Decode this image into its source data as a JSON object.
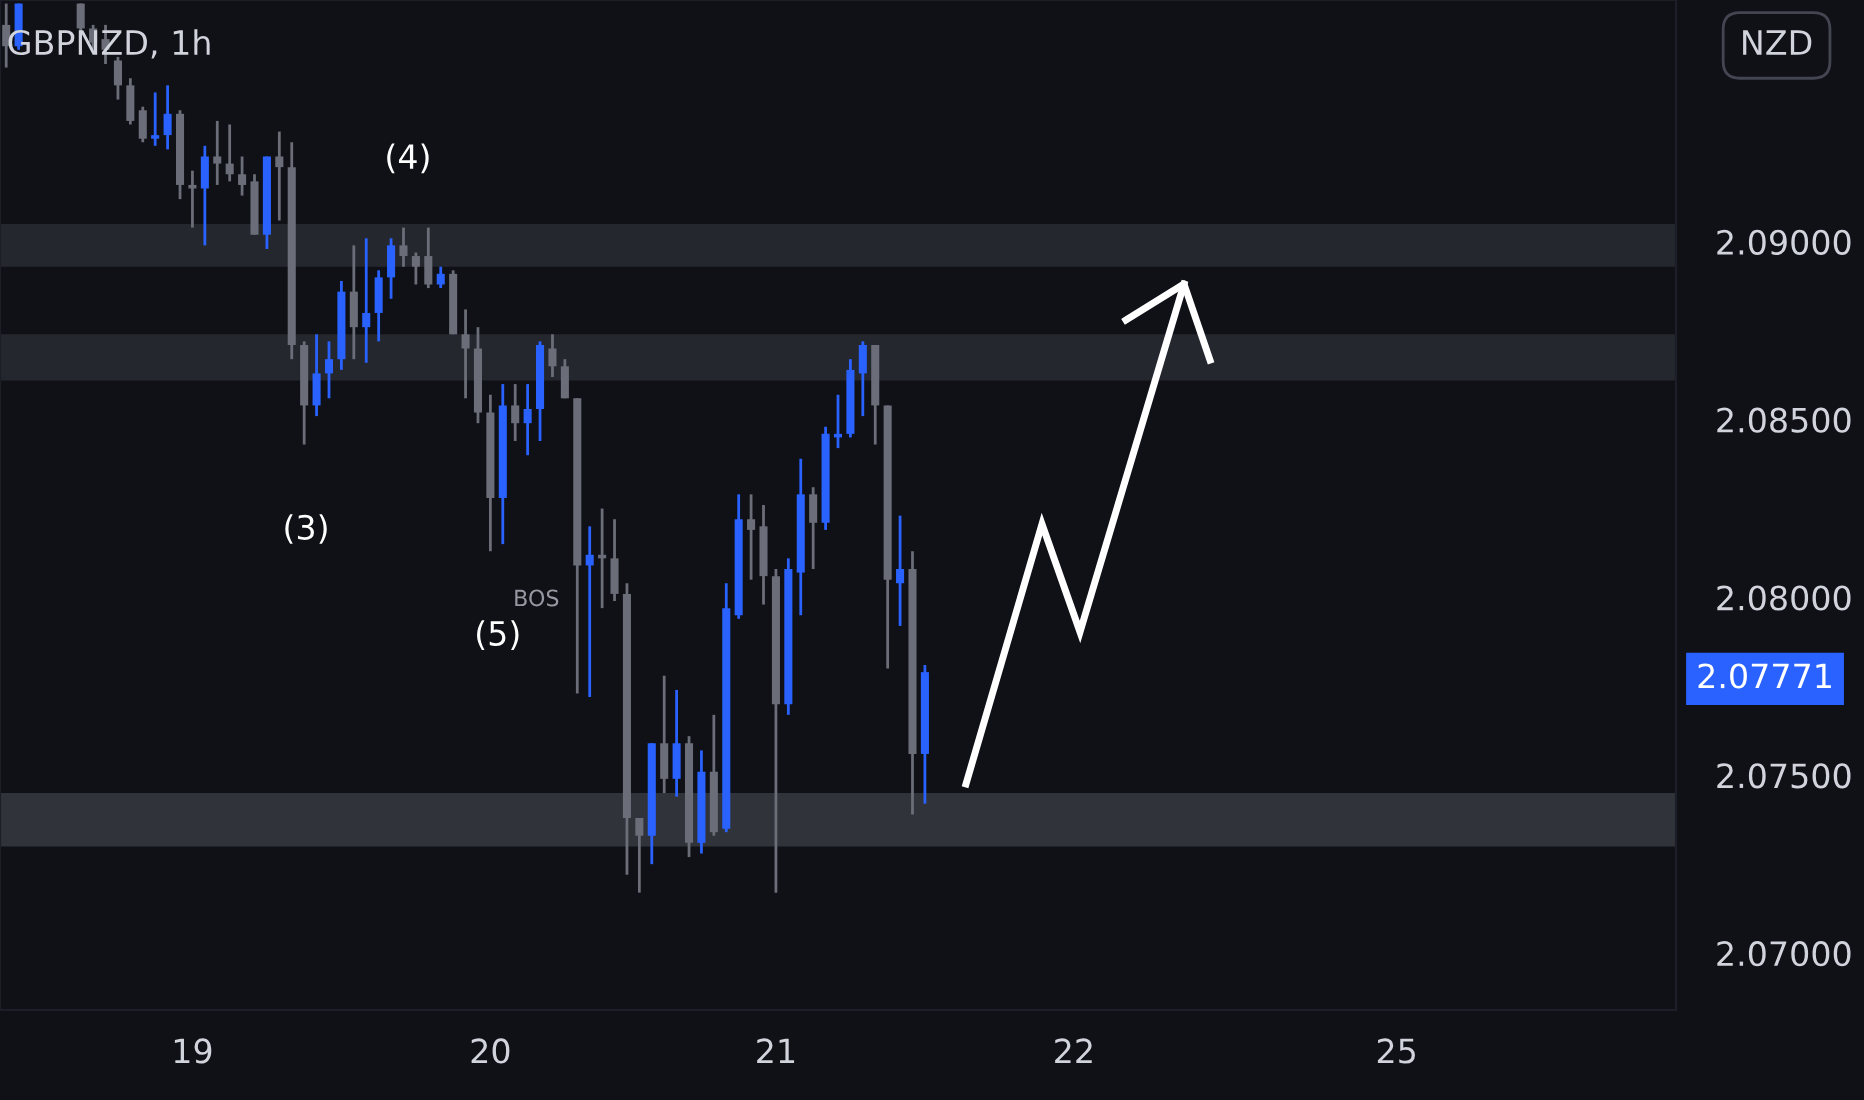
{
  "chart_data": {
    "type": "candlestick",
    "title": "GBPNZD, 1h",
    "categories": [
      null,
      null,
      null,
      null,
      null,
      null,
      null,
      null,
      null,
      null,
      null,
      null,
      null,
      null,
      null,
      "19",
      null,
      null,
      null,
      null,
      null,
      null,
      null,
      null,
      null,
      null,
      null,
      null,
      null,
      null,
      null,
      null,
      null,
      null,
      null,
      null,
      null,
      null,
      null,
      "20",
      null,
      null,
      null,
      null,
      null,
      null,
      null,
      null,
      null,
      null,
      null,
      null,
      null,
      null,
      null,
      null,
      null,
      null,
      null,
      null,
      null,
      null,
      "21",
      null,
      null,
      null,
      null,
      null,
      null,
      null,
      null,
      null,
      null,
      null,
      null,
      null,
      null,
      null,
      null,
      null,
      null,
      null,
      null,
      null,
      null,
      null,
      "22",
      null,
      null,
      null,
      null,
      null,
      null,
      null,
      null,
      null,
      null,
      null,
      null,
      null,
      null,
      null,
      null,
      null,
      null,
      null,
      null,
      null,
      null,
      null,
      null,
      null,
      "25",
      null,
      null,
      null,
      null,
      null,
      null,
      null,
      null,
      null,
      null,
      null,
      null,
      null,
      null,
      null,
      null,
      null,
      null,
      null,
      null,
      null,
      null
    ],
    "ohlc": [
      [
        2.0961,
        2.0967,
        2.0949,
        2.0955
      ],
      [
        2.0955,
        2.0967,
        2.0954,
        2.0967
      ],
      null,
      null,
      null,
      null,
      [
        2.0967,
        2.0967,
        2.0957,
        2.096
      ],
      [
        2.096,
        2.0961,
        2.0954,
        2.0956
      ],
      [
        2.0957,
        2.0961,
        2.095,
        2.0954
      ],
      [
        2.0951,
        2.0952,
        2.094,
        2.0944
      ],
      [
        2.0944,
        2.0946,
        2.0933,
        2.0934
      ],
      [
        2.0937,
        2.0938,
        2.0928,
        2.0929
      ],
      [
        2.0929,
        2.0942,
        2.0927,
        2.093
      ],
      [
        2.093,
        2.0944,
        2.0926,
        2.0936
      ],
      [
        2.0936,
        2.0937,
        2.0912,
        2.0916
      ],
      [
        2.0916,
        2.092,
        2.0904,
        2.0915
      ],
      [
        2.0915,
        2.0927,
        2.0899,
        2.0924
      ],
      [
        2.0924,
        2.0934,
        2.0916,
        2.0922
      ],
      [
        2.0922,
        2.0933,
        2.0917,
        2.0919
      ],
      [
        2.0919,
        2.0924,
        2.0913,
        2.0916
      ],
      [
        2.0917,
        2.0919,
        2.0902,
        2.0902
      ],
      [
        2.0902,
        2.0924,
        2.0898,
        2.0924
      ],
      [
        2.0924,
        2.0931,
        2.0906,
        2.0921
      ],
      [
        2.0921,
        2.0928,
        2.0867,
        2.0871
      ],
      [
        2.0871,
        2.0872,
        2.0843,
        2.0854
      ],
      [
        2.0854,
        2.0874,
        2.0851,
        2.0863
      ],
      [
        2.0863,
        2.0872,
        2.0856,
        2.0867
      ],
      [
        2.0867,
        2.0889,
        2.0864,
        2.0886
      ],
      [
        2.0886,
        2.0899,
        2.0867,
        2.0876
      ],
      [
        2.0876,
        2.0901,
        2.0866,
        2.088
      ],
      [
        2.088,
        2.0892,
        2.0872,
        2.089
      ],
      [
        2.089,
        2.0901,
        2.0884,
        2.0899
      ],
      [
        2.0899,
        2.0904,
        2.0893,
        2.0896
      ],
      [
        2.0896,
        2.0897,
        2.0888,
        2.0893
      ],
      [
        2.0896,
        2.0904,
        2.0887,
        2.0888
      ],
      [
        2.0888,
        2.0893,
        2.0887,
        2.0891
      ],
      [
        2.0891,
        2.0892,
        2.0874,
        2.0874
      ],
      [
        2.0874,
        2.0881,
        2.0856,
        2.087
      ],
      [
        2.087,
        2.0876,
        2.0849,
        2.0852
      ],
      [
        2.0852,
        2.0857,
        2.0813,
        2.0828
      ],
      [
        2.0828,
        2.086,
        2.0815,
        2.0854
      ],
      [
        2.0854,
        2.086,
        2.0844,
        2.0849
      ],
      [
        2.0849,
        2.086,
        2.084,
        2.0853
      ],
      [
        2.0853,
        2.0872,
        2.0844,
        2.0871
      ],
      [
        2.087,
        2.0874,
        2.0862,
        2.0865
      ],
      [
        2.0865,
        2.0867,
        2.0856,
        2.0856
      ],
      [
        2.0856,
        2.0856,
        2.0773,
        2.0809
      ],
      [
        2.0809,
        2.082,
        2.0772,
        2.0812
      ],
      [
        2.0812,
        2.0825,
        2.0797,
        2.0811
      ],
      [
        2.0811,
        2.0822,
        2.0799,
        2.0801
      ],
      [
        2.0801,
        2.0804,
        2.0722,
        2.0738
      ],
      [
        2.0738,
        2.0738,
        2.0717,
        2.0733
      ],
      [
        2.0733,
        2.0759,
        2.0725,
        2.0759
      ],
      [
        2.0759,
        2.0778,
        2.0745,
        2.0749
      ],
      [
        2.0749,
        2.0774,
        2.0744,
        2.0759
      ],
      [
        2.0759,
        2.0761,
        2.0727,
        2.0731
      ],
      [
        2.0731,
        2.0757,
        2.0728,
        2.0751
      ],
      [
        2.0751,
        2.0767,
        2.0733,
        2.0734
      ],
      [
        2.0735,
        2.0804,
        2.0734,
        2.0797
      ],
      [
        2.0795,
        2.0829,
        2.0794,
        2.0822
      ],
      [
        2.0822,
        2.0829,
        2.0805,
        2.0819
      ],
      [
        2.082,
        2.0826,
        2.0798,
        2.0806
      ],
      [
        2.0806,
        2.0808,
        2.0717,
        2.077
      ],
      [
        2.077,
        2.0811,
        2.0767,
        2.0808
      ],
      [
        2.0807,
        2.0839,
        2.0795,
        2.0829
      ],
      [
        2.0829,
        2.0831,
        2.0808,
        2.0821
      ],
      [
        2.0821,
        2.0848,
        2.0819,
        2.0846
      ],
      [
        2.0845,
        2.0857,
        2.0842,
        2.0846
      ],
      [
        2.0846,
        2.0867,
        2.0845,
        2.0864
      ],
      [
        2.0863,
        2.0872,
        2.0851,
        2.0871
      ],
      [
        2.0871,
        2.0871,
        2.0843,
        2.0854
      ],
      [
        2.0854,
        2.0854,
        2.078,
        2.0805
      ],
      [
        2.0804,
        2.0823,
        2.0792,
        2.0808
      ],
      [
        2.0808,
        2.0813,
        2.0739,
        2.0756
      ],
      [
        2.0756,
        2.0781,
        2.0742,
        2.0779
      ],
      null,
      null,
      null,
      null,
      null,
      null,
      null,
      null,
      null,
      null,
      null,
      null,
      null,
      null,
      null,
      null,
      null,
      null,
      null,
      null,
      null,
      null,
      null,
      null,
      null,
      null,
      null,
      null,
      null,
      null,
      null,
      null,
      null,
      null,
      null,
      null,
      null,
      null,
      null,
      null,
      null,
      null,
      null,
      null,
      null,
      null,
      null,
      null,
      null,
      null,
      null,
      null,
      null,
      null,
      null,
      null,
      null,
      null,
      null,
      null
    ],
    "colors": [
      "#6b6e78",
      "#2962ff",
      null,
      null,
      null,
      null,
      "#6b6e78",
      "#6b6e78",
      "#6b6e78",
      "#6b6e78",
      "#6b6e78",
      "#6b6e78",
      "#2962ff",
      "#2962ff",
      "#6b6e78",
      "#6b6e78",
      "#2962ff",
      "#6b6e78",
      "#6b6e78",
      "#6b6e78",
      "#6b6e78",
      "#2962ff",
      "#6b6e78",
      "#6b6e78",
      "#6b6e78",
      "#2962ff",
      "#2962ff",
      "#2962ff",
      "#6b6e78",
      "#2962ff",
      "#2962ff",
      "#2962ff",
      "#6b6e78",
      "#6b6e78",
      "#6b6e78",
      "#2962ff",
      "#6b6e78",
      "#6b6e78",
      "#6b6e78",
      "#6b6e78",
      "#2962ff",
      "#6b6e78",
      "#2962ff",
      "#2962ff",
      "#6b6e78",
      "#6b6e78",
      "#6b6e78",
      "#2962ff",
      "#6b6e78",
      "#6b6e78",
      "#6b6e78",
      "#6b6e78",
      "#2962ff",
      "#6b6e78",
      "#2962ff",
      "#6b6e78",
      "#2962ff",
      "#6b6e78",
      "#2962ff",
      "#2962ff",
      "#6b6e78",
      "#6b6e78",
      "#6b6e78",
      "#2962ff",
      "#2962ff",
      "#6b6e78",
      "#2962ff",
      "#2962ff",
      "#2962ff",
      "#2962ff",
      "#6b6e78",
      "#6b6e78",
      "#2962ff",
      "#6b6e78",
      "#2962ff",
      null,
      null,
      null,
      null,
      null,
      null,
      null,
      null,
      null,
      null,
      null,
      null,
      null,
      null,
      null,
      null,
      null,
      null,
      null,
      null,
      null,
      null,
      null,
      null,
      null,
      null,
      null,
      null,
      null,
      null,
      null,
      null,
      null,
      null,
      null,
      null,
      null,
      null,
      null,
      null,
      null,
      null,
      null,
      null,
      null,
      null,
      null,
      null,
      null,
      null,
      null,
      null,
      null,
      null,
      null,
      null,
      null,
      null,
      null,
      null
    ],
    "ylim": [
      2.0684,
      2.0968
    ],
    "yticks": [
      {
        "value": 2.07,
        "label": "2.07000"
      },
      {
        "value": 2.075,
        "label": "2.07500"
      },
      {
        "value": 2.08,
        "label": "2.08000"
      },
      {
        "value": 2.085,
        "label": "2.08500"
      },
      {
        "value": 2.09,
        "label": "2.09000"
      }
    ],
    "bands": [
      {
        "axis": "y",
        "from": 2.0893,
        "to": 2.0905,
        "color": "#2a2d36"
      },
      {
        "axis": "y",
        "from": 2.0861,
        "to": 2.0874,
        "color": "#2a2d36"
      },
      {
        "axis": "y",
        "from": 2.073,
        "to": 2.0745,
        "color": "#3a3c44"
      }
    ],
    "annotations": [
      "(3)",
      "(4)",
      "(5)",
      "BOS",
      "2.07771",
      "NZD"
    ],
    "grid": false
  }
}
